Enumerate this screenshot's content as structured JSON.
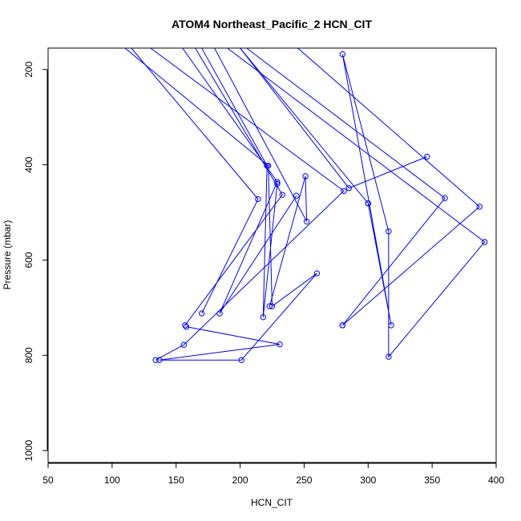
{
  "chart_data": {
    "type": "line",
    "title": "ATOM4 Northeast_Pacific_2 HCN_CIT",
    "xlabel": "HCN_CIT",
    "ylabel": "Pressure (mbar)",
    "xlim": [
      50,
      400
    ],
    "ylim": [
      155,
      1025
    ],
    "y_reversed": true,
    "x_ticks": [
      50,
      100,
      150,
      200,
      250,
      300,
      350,
      400
    ],
    "y_ticks": [
      200,
      400,
      600,
      800,
      1000
    ],
    "color": "#0000ff",
    "marker": "open-circle",
    "series": [
      {
        "points": [
          [
            110,
            155
          ],
          [
            222,
            402
          ],
          [
            225,
            697
          ],
          [
            260,
            628
          ],
          [
            201,
            810
          ],
          [
            137,
            810
          ],
          [
            231,
            777
          ],
          [
            158,
            740
          ]
        ]
      },
      {
        "points": [
          [
            115,
            155
          ],
          [
            214,
            472
          ],
          [
            170,
            712
          ]
        ]
      },
      {
        "points": [
          [
            130,
            155
          ],
          [
            281,
            455
          ],
          [
            156,
            778
          ],
          [
            134,
            810
          ]
        ]
      },
      {
        "points": [
          [
            155,
            155
          ],
          [
            229,
            436
          ],
          [
            184,
            712
          ],
          [
            244,
            465
          ]
        ]
      },
      {
        "points": [
          [
            165,
            155
          ],
          [
            233,
            463
          ],
          [
            157,
            737
          ]
        ]
      },
      {
        "points": [
          [
            170,
            155
          ],
          [
            221,
            402
          ],
          [
            218,
            720
          ],
          [
            229,
            440
          ]
        ]
      },
      {
        "points": [
          [
            180,
            155
          ],
          [
            252,
            519
          ],
          [
            251,
            424
          ],
          [
            223,
            697
          ]
        ]
      },
      {
        "points": [
          [
            190,
            155
          ],
          [
            391,
            562
          ],
          [
            316,
            803
          ],
          [
            316,
            540
          ],
          [
            280,
            168
          ],
          [
            318,
            737
          ],
          [
            300,
            481
          ]
        ]
      },
      {
        "points": [
          [
            200,
            155
          ],
          [
            285,
            449
          ],
          [
            346,
            383
          ]
        ]
      },
      {
        "points": [
          [
            205,
            155
          ],
          [
            360,
            470
          ],
          [
            280,
            737
          ]
        ]
      },
      {
        "points": [
          [
            245,
            155
          ],
          [
            387,
            488
          ],
          [
            280,
            737
          ]
        ]
      },
      {
        "points": [
          [
            200,
            155
          ],
          [
            300,
            481
          ]
        ]
      }
    ]
  }
}
